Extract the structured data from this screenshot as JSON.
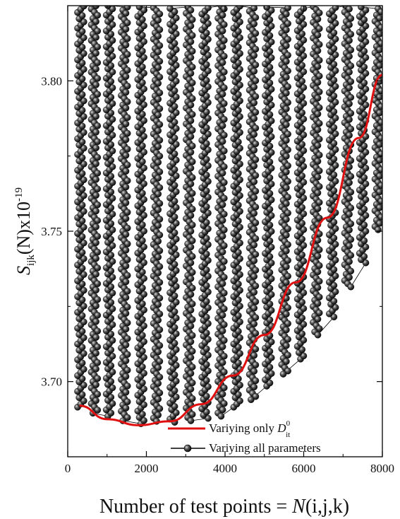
{
  "chart_data": {
    "type": "line",
    "xlabel_prefix": "Number of test points = ",
    "xlabel_func": "N",
    "xlabel_args": "(i,j,k)",
    "ylabel_var": "S",
    "ylabel_sub": "ijk",
    "ylabel_mid": "(N)x10",
    "ylabel_sup": "-19",
    "xlim": [
      0,
      8000
    ],
    "ylim": [
      3.675,
      3.825
    ],
    "xticks": [
      0,
      2000,
      4000,
      6000,
      8000
    ],
    "xtick_labels": [
      "0",
      "2000",
      "4000",
      "6000",
      "8000"
    ],
    "yticks": [
      3.7,
      3.75,
      3.8
    ],
    "ytick_labels": [
      "3.70",
      "3.75",
      "3.80"
    ],
    "grid": false,
    "legend_position": "bottom-right",
    "series": [
      {
        "name_prefix": "Variying only ",
        "name_symbol": "D",
        "name_sup": "0",
        "name_sub": "it",
        "color": "#e01010",
        "style": "line",
        "x": [
          300,
          1000,
          1800,
          2600,
          3400,
          4200,
          5000,
          5800,
          6600,
          7400,
          8000
        ],
        "y": [
          3.692,
          3.6875,
          3.6855,
          3.6868,
          3.6925,
          3.702,
          3.7155,
          3.733,
          3.7545,
          3.781,
          3.802
        ]
      },
      {
        "name": "Variying all parameters",
        "color": "#000000",
        "marker_color": "#222222",
        "style": "line-marker",
        "column_x": [
          330,
          680,
          1060,
          1440,
          1860,
          2260,
          2680,
          3090,
          3490,
          3900,
          4300,
          4700,
          5100,
          5520,
          5920,
          6320,
          6730,
          7120,
          7500,
          7890
        ],
        "column_min": [
          3.6915,
          3.6895,
          3.6885,
          3.687,
          3.686,
          3.6868,
          3.6865,
          3.687,
          3.6878,
          3.6885,
          3.6915,
          3.694,
          3.6985,
          3.7025,
          3.7075,
          3.7155,
          3.7215,
          3.7315,
          3.7395,
          3.7505
        ],
        "column_max": [
          3.825,
          3.825,
          3.825,
          3.825,
          3.825,
          3.825,
          3.825,
          3.825,
          3.825,
          3.825,
          3.825,
          3.825,
          3.825,
          3.825,
          3.825,
          3.825,
          3.825,
          3.825,
          3.825,
          3.825
        ]
      }
    ]
  }
}
